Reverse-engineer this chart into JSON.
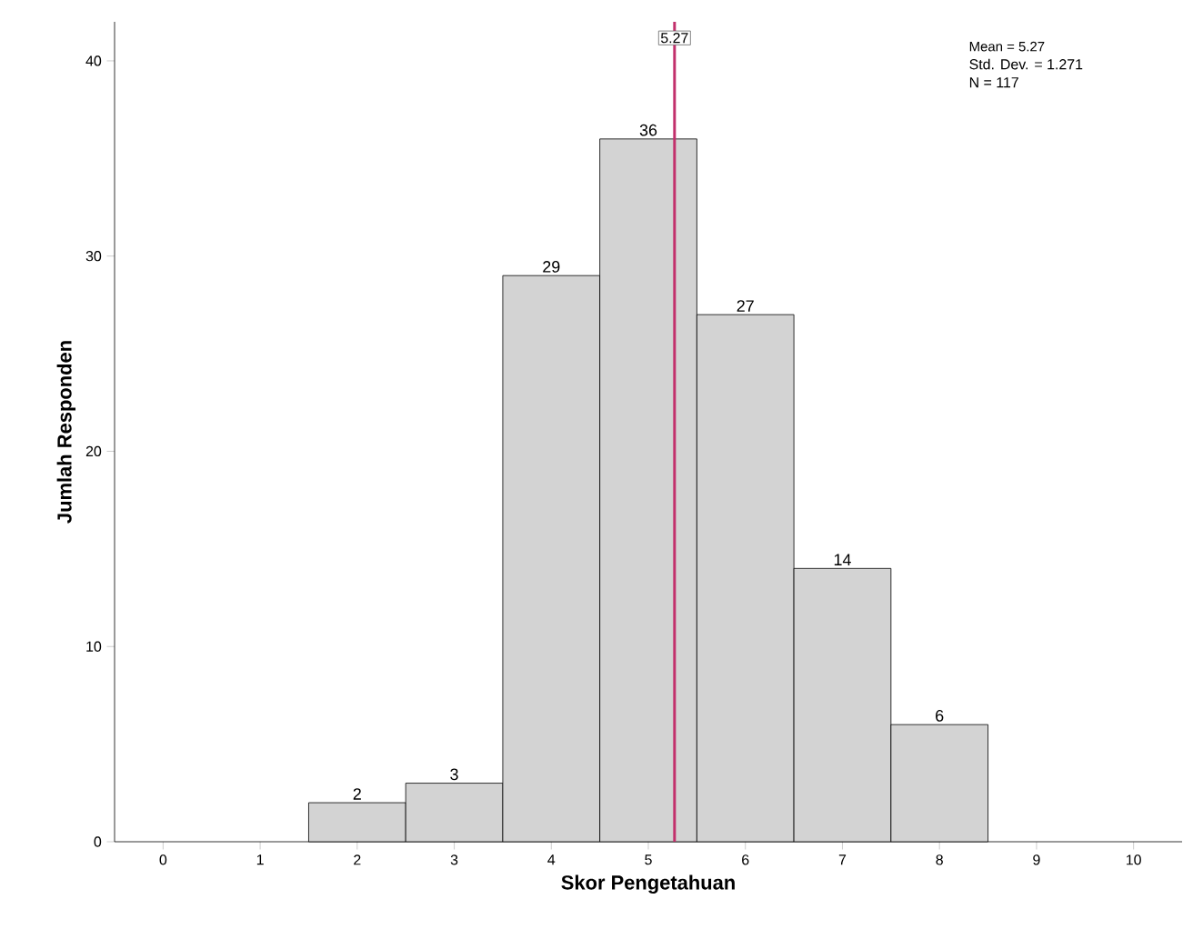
{
  "chart_data": {
    "type": "histogram",
    "xlabel": "Skor Pengetahuan",
    "ylabel": "Jumlah Responden",
    "bins": [
      1.5,
      2.5,
      3.5,
      4.5,
      5.5,
      6.5,
      7.5,
      8.5
    ],
    "values": [
      2,
      3,
      29,
      36,
      27,
      14,
      6
    ],
    "color": "#d3d3d3",
    "data_labels": true,
    "xlim": [
      -0.5,
      10.5
    ],
    "xticks": [
      0,
      1,
      2,
      3,
      4,
      5,
      6,
      7,
      8,
      9,
      10
    ],
    "ylim": [
      0,
      42
    ],
    "yticks": [
      0,
      10,
      20,
      30,
      40
    ],
    "ref_lines": [
      {
        "axis": "x",
        "value": 5.27,
        "label": "5.27",
        "color": "#c2306c"
      }
    ],
    "annotations": [
      "Mean = 5.27",
      "Std. Dev. = 1.271",
      "N = 117"
    ],
    "grid": false
  }
}
